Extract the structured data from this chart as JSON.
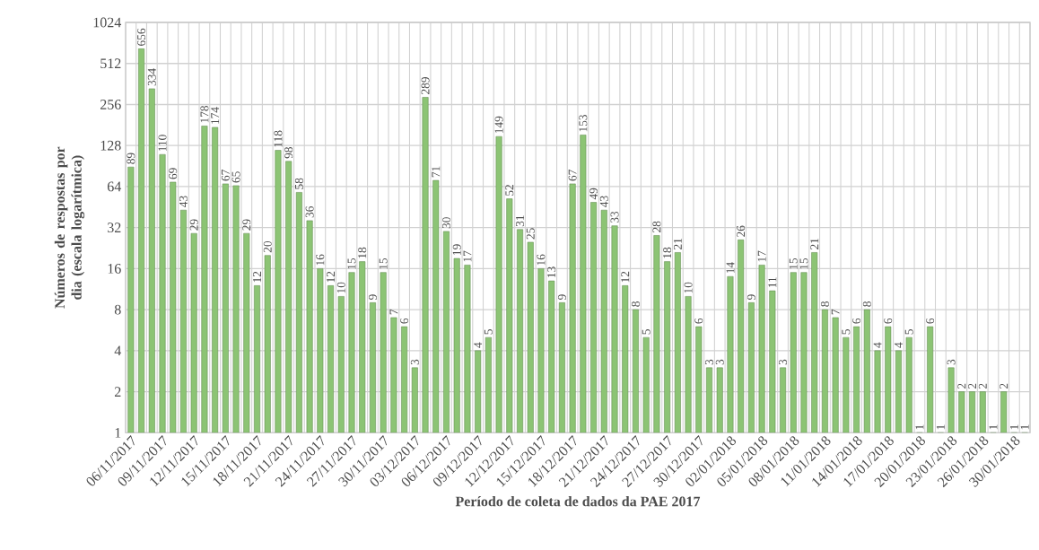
{
  "chart_data": {
    "type": "bar",
    "xlabel": "Período de coleta de dados da PAE 2017",
    "ylabel": "Números de respostas por dia (escala logarítmica)",
    "categories": [
      "06/11/2017",
      null,
      null,
      "09/11/2017",
      null,
      null,
      "12/11/2017",
      null,
      null,
      "15/11/2017",
      null,
      null,
      "18/11/2017",
      null,
      null,
      "21/11/2017",
      null,
      null,
      "24/11/2017",
      null,
      null,
      "27/11/2017",
      null,
      null,
      "30/11/2017",
      null,
      null,
      "03/12/2017",
      null,
      null,
      "06/12/2017",
      null,
      null,
      "09/12/2017",
      null,
      null,
      "12/12/2017",
      null,
      null,
      "15/12/2017",
      null,
      null,
      "18/12/2017",
      null,
      null,
      "21/12/2017",
      null,
      null,
      "24/12/2017",
      null,
      null,
      "27/12/2017",
      null,
      null,
      "30/12/2017",
      null,
      null,
      "02/01/2018",
      null,
      null,
      "05/01/2018",
      null,
      null,
      "08/01/2018",
      null,
      null,
      "11/01/2018",
      null,
      null,
      "14/01/2018",
      null,
      null,
      "17/01/2018",
      null,
      null,
      "20/01/2018",
      null,
      null,
      "23/01/2018",
      null,
      null,
      "26/01/2018",
      null,
      null,
      "30/01/2018",
      null
    ],
    "values": [
      89,
      656,
      334,
      110,
      69,
      43,
      29,
      178,
      174,
      67,
      65,
      29,
      12,
      20,
      118,
      98,
      58,
      36,
      16,
      12,
      10,
      15,
      18,
      9,
      15,
      7,
      6,
      3,
      289,
      71,
      30,
      19,
      17,
      4,
      5,
      149,
      52,
      31,
      25,
      16,
      13,
      9,
      67,
      153,
      49,
      43,
      33,
      12,
      8,
      5,
      28,
      18,
      21,
      10,
      6,
      3,
      3,
      14,
      26,
      9,
      17,
      11,
      3,
      15,
      15,
      21,
      8,
      7,
      5,
      6,
      8,
      4,
      6,
      4,
      5,
      1,
      6,
      1,
      3,
      2,
      2,
      2,
      1,
      2,
      1,
      1
    ],
    "color": "#8cc474",
    "log": "y",
    "ylim": [
      1,
      1024
    ],
    "yticks": [
      1,
      2,
      4,
      8,
      16,
      32,
      64,
      128,
      256,
      512,
      1024
    ],
    "grid": true,
    "data_labels": true
  }
}
